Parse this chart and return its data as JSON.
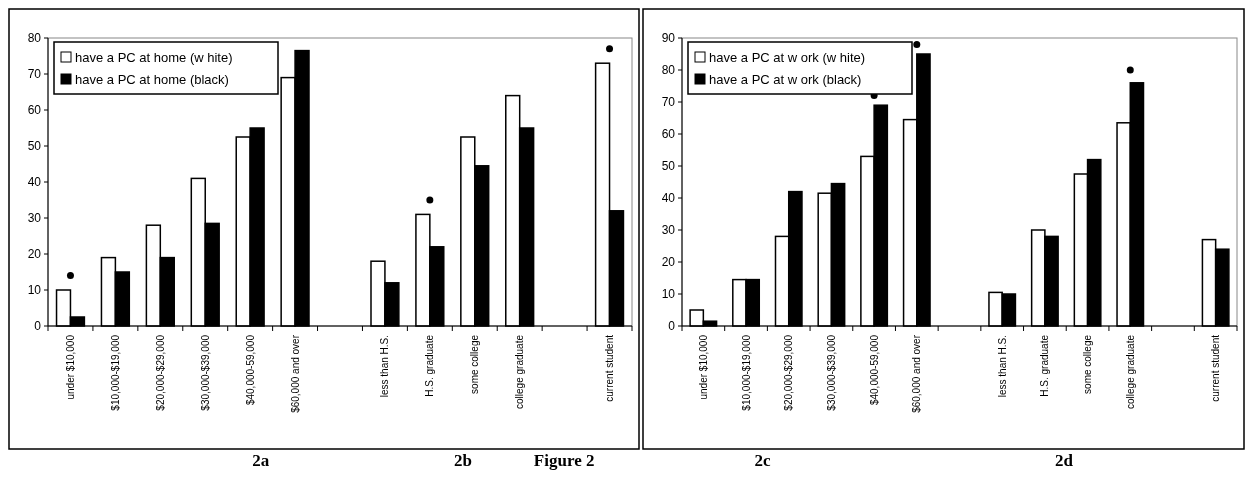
{
  "chart_data": [
    {
      "type": "bar",
      "categories": [
        "under $10,000",
        "$10,000-$19,000",
        "$20,000-$29,000",
        "$30,000-$39,000",
        "$40,000-59,000",
        "$60,000 and over",
        null,
        "less than H.S.",
        "H.S. graduate",
        "some college",
        "college graduate",
        null,
        "current student"
      ],
      "series": [
        {
          "name": "have a PC at home (w hite)",
          "color": "#ffffff",
          "values": [
            10,
            19,
            28,
            41,
            52.5,
            69,
            null,
            18,
            31,
            52.5,
            64,
            null,
            73
          ]
        },
        {
          "name": "have a PC at home (black)",
          "color": "#000000",
          "values": [
            2.5,
            15,
            19,
            28.5,
            55,
            76.5,
            null,
            12,
            22,
            44.5,
            55,
            null,
            32
          ]
        },
        {
          "type": "scatter",
          "color": "#000000",
          "marker": "circle",
          "x": [
            "under $10,000",
            "H.S. graduate",
            "current student"
          ],
          "values": [
            14,
            35,
            77
          ]
        }
      ],
      "ylim": [
        0,
        80
      ],
      "yticks": [
        0,
        10,
        20,
        30,
        40,
        50,
        60,
        70,
        80
      ],
      "legend": "top left",
      "annotations": [
        "2a",
        "2b",
        "Figure 2"
      ]
    },
    {
      "type": "bar",
      "categories": [
        "under $10,000",
        "$10,000-$19,000",
        "$20,000-$29,000",
        "$30,000-$39,000",
        "$40,000-59,000",
        "$60,000 and over",
        null,
        "less than H.S.",
        "H.S. graduate",
        "some college",
        "college graduate",
        null,
        "current student"
      ],
      "series": [
        {
          "name": "have a PC at w ork (w hite)",
          "color": "#ffffff",
          "values": [
            5,
            14.5,
            28,
            41.5,
            53,
            64.5,
            null,
            10.5,
            30,
            47.5,
            63.5,
            null,
            27
          ]
        },
        {
          "name": "have a PC at w ork (black)",
          "color": "#000000",
          "values": [
            1.5,
            14.5,
            42,
            44.5,
            69,
            85,
            null,
            10,
            28,
            52,
            76,
            null,
            24
          ]
        },
        {
          "type": "scatter",
          "color": "#000000",
          "marker": "circle",
          "x": [
            "$40,000-59,000",
            "$60,000 and over",
            "college graduate"
          ],
          "values": [
            72,
            88,
            80
          ]
        }
      ],
      "ylim": [
        0,
        90
      ],
      "yticks": [
        0,
        10,
        20,
        30,
        40,
        50,
        60,
        70,
        80,
        90
      ],
      "legend": "top left",
      "annotations": [
        "2c",
        "2d"
      ]
    }
  ]
}
